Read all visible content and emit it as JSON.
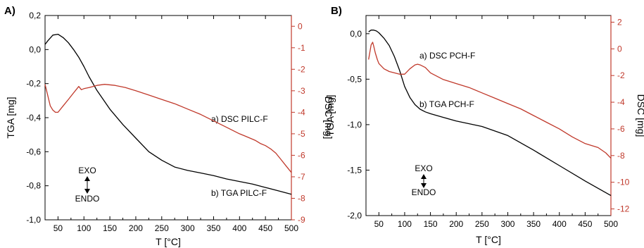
{
  "chart_data": [
    {
      "panel_label": "A)",
      "type": "line",
      "xlabel": "T [°C]",
      "xlim": [
        25,
        500
      ],
      "xticks": [
        50,
        100,
        150,
        200,
        250,
        300,
        350,
        400,
        450,
        500
      ],
      "ylabel": "TGA [mg]",
      "ylim": [
        -1.0,
        0.2
      ],
      "yticks": [
        -1.0,
        -0.8,
        -0.6,
        -0.4,
        -0.2,
        0.0,
        0.2
      ],
      "y2label": "DSC [mg]",
      "y2lim": [
        -9,
        0.5
      ],
      "y2ticks": [
        -9,
        -8,
        -7,
        -6,
        -5,
        -4,
        -3,
        -2,
        -1,
        0
      ],
      "annotation_exo": "EXO",
      "annotation_endo": "ENDO",
      "colors": {
        "tga": "#000000",
        "dsc": "#c0392b"
      },
      "series": [
        {
          "name": "b) TGA PILC-F",
          "axis": "left",
          "x": [
            25,
            30,
            40,
            50,
            60,
            70,
            80,
            90,
            100,
            110,
            125,
            150,
            175,
            200,
            225,
            250,
            275,
            300,
            325,
            350,
            375,
            400,
            425,
            450,
            475,
            500
          ],
          "y": [
            0.03,
            0.05,
            0.085,
            0.09,
            0.07,
            0.04,
            0.0,
            -0.045,
            -0.1,
            -0.16,
            -0.24,
            -0.35,
            -0.44,
            -0.52,
            -0.6,
            -0.65,
            -0.69,
            -0.71,
            -0.725,
            -0.74,
            -0.76,
            -0.775,
            -0.79,
            -0.81,
            -0.83,
            -0.85
          ]
        },
        {
          "name": "a) DSC PILC-F",
          "axis": "right",
          "x": [
            25,
            30,
            35,
            40,
            45,
            50,
            60,
            70,
            80,
            90,
            95,
            100,
            110,
            125,
            140,
            160,
            180,
            200,
            225,
            250,
            275,
            300,
            325,
            350,
            375,
            400,
            410,
            420,
            430,
            440,
            450,
            460,
            470,
            480,
            490,
            500
          ],
          "y": [
            -2.7,
            -3.2,
            -3.7,
            -3.9,
            -4.0,
            -4.0,
            -3.7,
            -3.4,
            -3.1,
            -2.8,
            -2.95,
            -2.9,
            -2.85,
            -2.75,
            -2.7,
            -2.75,
            -2.85,
            -3.0,
            -3.2,
            -3.4,
            -3.6,
            -3.85,
            -4.1,
            -4.4,
            -4.7,
            -5.0,
            -5.1,
            -5.2,
            -5.3,
            -5.45,
            -5.55,
            -5.7,
            -5.9,
            -6.2,
            -6.5,
            -6.8
          ]
        }
      ]
    },
    {
      "panel_label": "B)",
      "type": "line",
      "xlabel": "T [°C]",
      "xlim": [
        25,
        500
      ],
      "xticks": [
        50,
        100,
        150,
        200,
        250,
        300,
        350,
        400,
        450,
        500
      ],
      "ylabel": "TGA [mg]",
      "ylim": [
        -2.0,
        0.2
      ],
      "yticks": [
        -2.0,
        -1.5,
        -1.0,
        -0.5,
        0.0
      ],
      "y2label": "DSC [mg]",
      "y2lim": [
        -12.5,
        2.5
      ],
      "y2ticks": [
        -12,
        -10,
        -8,
        -6,
        -4,
        -2,
        0,
        2
      ],
      "annotation_exo": "EXO",
      "annotation_endo": "ENDO",
      "colors": {
        "tga": "#000000",
        "dsc": "#c0392b"
      },
      "series": [
        {
          "name": "b) TGA PCH-F",
          "axis": "left",
          "x": [
            30,
            35,
            40,
            45,
            50,
            60,
            70,
            80,
            90,
            100,
            110,
            120,
            130,
            140,
            150,
            175,
            200,
            250,
            300,
            350,
            400,
            450,
            500
          ],
          "y": [
            0.02,
            0.04,
            0.04,
            0.03,
            0.01,
            -0.05,
            -0.13,
            -0.25,
            -0.4,
            -0.58,
            -0.7,
            -0.78,
            -0.83,
            -0.86,
            -0.88,
            -0.92,
            -0.96,
            -1.02,
            -1.12,
            -1.28,
            -1.45,
            -1.62,
            -1.78
          ]
        },
        {
          "name": "a) DSC PCH-F",
          "axis": "right",
          "x": [
            30,
            35,
            38,
            40,
            43,
            47,
            50,
            60,
            70,
            80,
            90,
            100,
            110,
            120,
            125,
            130,
            140,
            150,
            175,
            200,
            225,
            250,
            275,
            300,
            325,
            350,
            375,
            400,
            425,
            450,
            475,
            490,
            500
          ],
          "y": [
            -0.8,
            0.3,
            0.5,
            0.2,
            -0.3,
            -0.8,
            -1.1,
            -1.5,
            -1.7,
            -1.8,
            -1.9,
            -1.9,
            -1.5,
            -1.2,
            -1.15,
            -1.2,
            -1.4,
            -1.8,
            -2.3,
            -2.6,
            -2.9,
            -3.3,
            -3.7,
            -4.1,
            -4.5,
            -5.0,
            -5.5,
            -6.0,
            -6.6,
            -7.1,
            -7.4,
            -7.8,
            -8.2
          ]
        }
      ]
    }
  ]
}
